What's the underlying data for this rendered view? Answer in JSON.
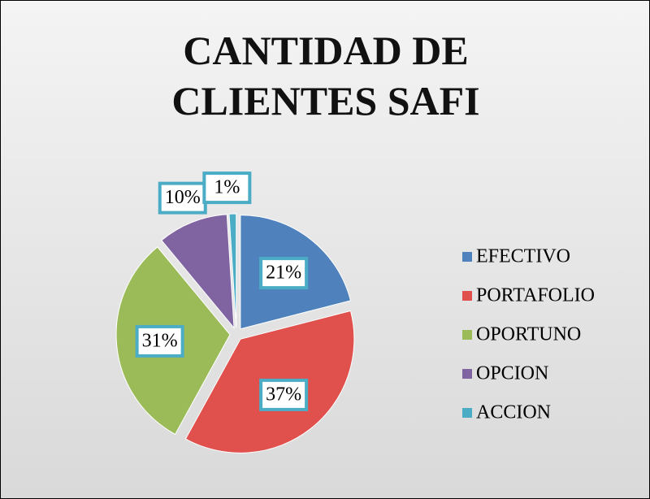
{
  "chart_data": {
    "type": "pie",
    "title": "CANTIDAD DE CLIENTES SAFI",
    "categories": [
      "EFECTIVO",
      "PORTAFOLIO",
      "OPORTUNO",
      "OPCION",
      "ACCION"
    ],
    "values": [
      21,
      37,
      31,
      10,
      1
    ],
    "value_labels": [
      "21%",
      "37%",
      "31%",
      "10%",
      "1%"
    ],
    "colors": [
      "#4f81bd",
      "#e0504d",
      "#9bbb59",
      "#8064a2",
      "#4bacc6"
    ],
    "legend": "right"
  }
}
